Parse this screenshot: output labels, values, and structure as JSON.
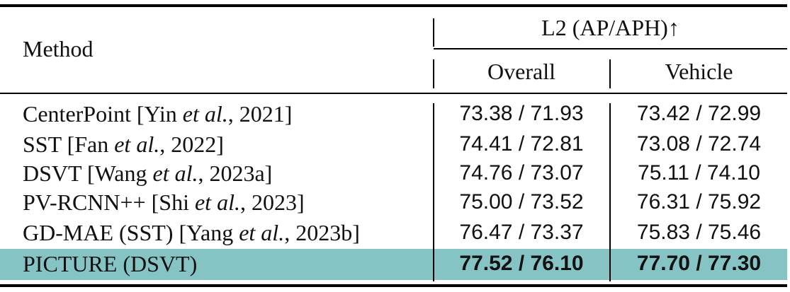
{
  "header": {
    "method": "Method",
    "group": "L2 (AP/APH)↑",
    "col_overall": "Overall",
    "col_vehicle": "Vehicle"
  },
  "rows": [
    {
      "name_pre": "CenterPoint [Yin ",
      "name_em": "et al.",
      "name_post": ", 2021]",
      "overall": "73.38 / 71.93",
      "vehicle": "73.42 / 72.99"
    },
    {
      "name_pre": "SST [Fan ",
      "name_em": "et al.",
      "name_post": ", 2022]",
      "overall": "74.41 / 72.81",
      "vehicle": "73.08 / 72.74"
    },
    {
      "name_pre": "DSVT [Wang ",
      "name_em": "et al.",
      "name_post": ", 2023a]",
      "overall": "74.76 / 73.07",
      "vehicle": "75.11 / 74.10"
    },
    {
      "name_pre": "PV-RCNN++ [Shi ",
      "name_em": "et al.",
      "name_post": ", 2023]",
      "overall": "75.00 / 73.52",
      "vehicle": "76.31 / 75.92"
    },
    {
      "name_pre": "GD-MAE (SST) [Yang ",
      "name_em": "et al.",
      "name_post": ", 2023b]",
      "overall": "76.47 / 73.37",
      "vehicle": "75.83 / 75.46"
    }
  ],
  "highlight_row": {
    "name": "PICTURE (DSVT)",
    "overall": "77.52 / 76.10",
    "vehicle": "77.70 / 77.30"
  },
  "colors": {
    "highlight": "#85c3c4"
  }
}
